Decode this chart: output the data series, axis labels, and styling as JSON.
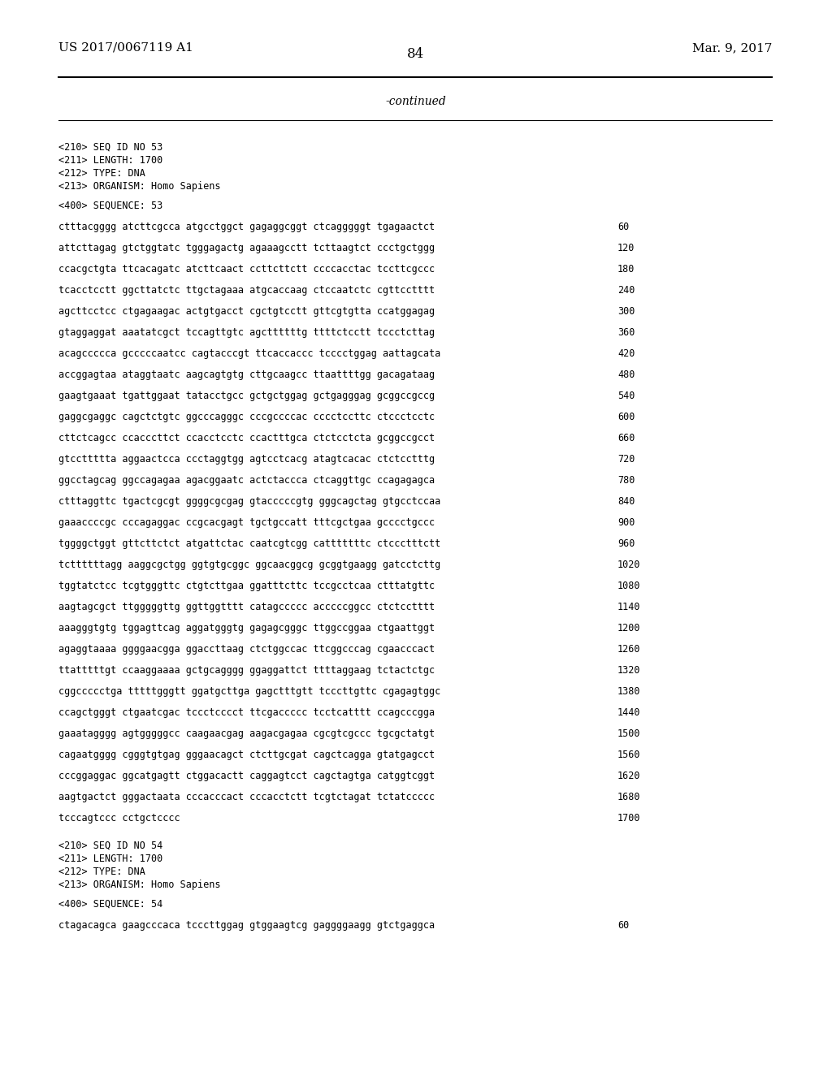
{
  "background_color": "#ffffff",
  "header_left": "US 2017/0067119 A1",
  "header_right": "Mar. 9, 2017",
  "page_number": "84",
  "continued_text": "-continued",
  "metadata_lines": [
    "<210> SEQ ID NO 53",
    "<211> LENGTH: 1700",
    "<212> TYPE: DNA",
    "<213> ORGANISM: Homo Sapiens"
  ],
  "sequence_label": "<400> SEQUENCE: 53",
  "sequence_lines": [
    [
      "ctttacgggg atcttcgcca atgcctggct gagaggcggt ctcagggggt tgagaactct",
      "60"
    ],
    [
      "attcttagag gtctggtatc tgggagactg agaaagcctt tcttaagtct ccctgctggg",
      "120"
    ],
    [
      "ccacgctgta ttcacagatc atcttcaact ccttcttctt ccccacctac tccttcgccc",
      "180"
    ],
    [
      "tcacctcctt ggcttatctc ttgctagaaa atgcaccaag ctccaatctc cgttcctttt",
      "240"
    ],
    [
      "agcttcctcc ctgagaagac actgtgacct cgctgtcctt gttcgtgtta ccatggagag",
      "300"
    ],
    [
      "gtaggaggat aaatatcgct tccagttgtc agcttttttg ttttctcctt tccctcttag",
      "360"
    ],
    [
      "acagccccca gcccccaatcc cagtacccgt ttcaccaccc tcccctggag aattagcata",
      "420"
    ],
    [
      "accggagtaa ataggtaatc aagcagtgtg cttgcaagcc ttaattttgg gacagataag",
      "480"
    ],
    [
      "gaagtgaaat tgattggaat tatacctgcc gctgctggag gctgagggag gcggccgccg",
      "540"
    ],
    [
      "gaggcgaggc cagctctgtc ggcccagggc cccgccccac cccctccttc ctccctcctc",
      "600"
    ],
    [
      "cttctcagcc ccacccttct ccacctcctc ccactttgca ctctcctcta gcggccgcct",
      "660"
    ],
    [
      "gtccttttta aggaactcca ccctaggtgg agtcctcacg atagtcacac ctctcctttg",
      "720"
    ],
    [
      "ggcctagcag ggccagagaa agacggaatc actctaccca ctcaggttgc ccagagagca",
      "780"
    ],
    [
      "ctttaggttc tgactcgcgt ggggcgcgag gtacccccgtg gggcagctag gtgcctccaa",
      "840"
    ],
    [
      "gaaaccccgc cccagaggac ccgcacgagt tgctgccatt tttcgctgaa gcccctgccc",
      "900"
    ],
    [
      "tggggctggt gttcttctct atgattctac caatcgtcgg catttttttc ctccctttctt",
      "960"
    ],
    [
      "tcttttttagg aaggcgctgg ggtgtgcggc ggcaacggcg gcggtgaagg gatcctcttg",
      "1020"
    ],
    [
      "tggtatctcc tcgtgggttc ctgtcttgaa ggatttcttc tccgcctcaa ctttatgttc",
      "1080"
    ],
    [
      "aagtagcgct ttgggggttg ggttggtttt catagccccc acccccggcc ctctcctttt",
      "1140"
    ],
    [
      "aaagggtgtg tggagttcag aggatgggtg gagagcgggc ttggccggaa ctgaattggt",
      "1200"
    ],
    [
      "agaggtaaaa ggggaacgga ggaccttaag ctctggccac ttcggcccag cgaacccact",
      "1260"
    ],
    [
      "ttatttttgt ccaaggaaaa gctgcagggg ggaggattct ttttaggaag tctactctgc",
      "1320"
    ],
    [
      "cggccccctga tttttgggtt ggatgcttga gagctttgtt tcccttgttc cgagagtggc",
      "1380"
    ],
    [
      "ccagctgggt ctgaatcgac tccctcccct ttcgaccccc tcctcatttt ccagcccgga",
      "1440"
    ],
    [
      "gaaatagggg agtgggggcc caagaacgag aagacgagaa cgcgtcgccc tgcgctatgt",
      "1500"
    ],
    [
      "cagaatgggg cgggtgtgag gggaacagct ctcttgcgat cagctcagga gtatgagcct",
      "1560"
    ],
    [
      "cccggaggac ggcatgagtt ctggacactt caggagtcct cagctagtga catggtcggt",
      "1620"
    ],
    [
      "aagtgactct gggactaata cccacccact cccacctctt tcgtctagat tctatccccc",
      "1680"
    ],
    [
      "tcccagtccc cctgctcccc",
      "1700"
    ]
  ],
  "metadata2_lines": [
    "<210> SEQ ID NO 54",
    "<211> LENGTH: 1700",
    "<212> TYPE: DNA",
    "<213> ORGANISM: Homo Sapiens"
  ],
  "sequence_label2": "<400> SEQUENCE: 54",
  "sequence2_lines": [
    [
      "ctagacagca gaagcccaca tcccttggag gtggaagtcg gaggggaagg gtctgaggca",
      "60"
    ]
  ]
}
